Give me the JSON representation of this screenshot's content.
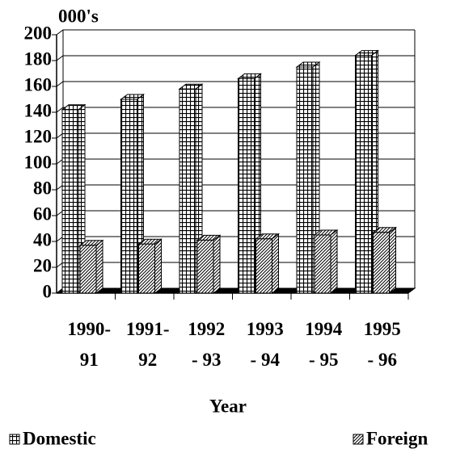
{
  "chart_data": {
    "type": "bar3d",
    "title": "000's",
    "x_label": "Year",
    "categories": [
      [
        "1990-",
        "91"
      ],
      [
        "1991-",
        "92"
      ],
      [
        "1992",
        "- 93"
      ],
      [
        "1993",
        "- 94"
      ],
      [
        "1994",
        "- 95"
      ],
      [
        "1995",
        "- 96"
      ]
    ],
    "series": [
      {
        "name": "Domestic",
        "color": "#000000",
        "pattern": "grid",
        "values": [
          142,
          150,
          158,
          166,
          175,
          184
        ]
      },
      {
        "name": "Foreign",
        "color": "#000000",
        "pattern": "hatch",
        "values": [
          37,
          38,
          41,
          42,
          45,
          47
        ]
      }
    ],
    "ylim": [
      0,
      200
    ],
    "yticks": [
      0,
      20,
      40,
      60,
      80,
      100,
      120,
      140,
      160,
      180,
      200
    ],
    "grid": true
  }
}
